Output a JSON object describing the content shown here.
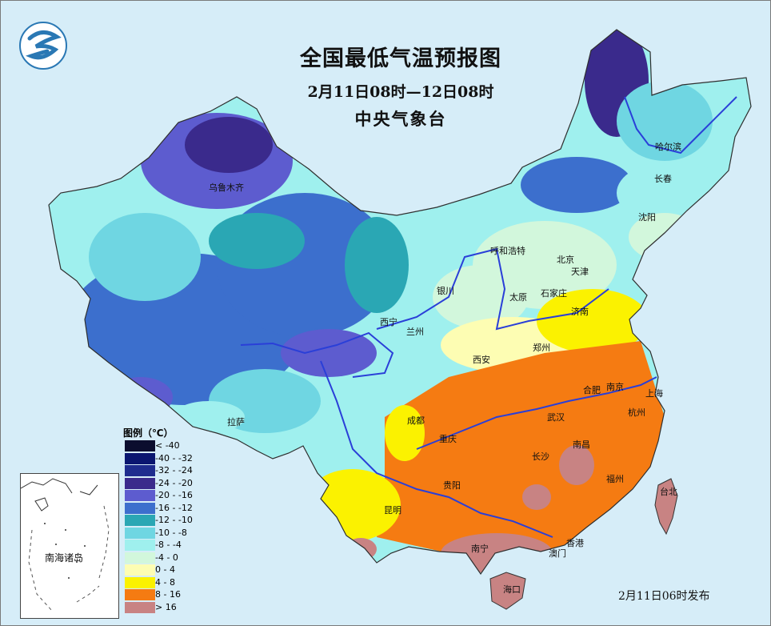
{
  "map": {
    "title": "全国最低气温预报图",
    "subtitle": "2月11日08时—12日08时",
    "agency": "中央气象台",
    "issued": "2月11日06时发布",
    "inset_label": "南海诸岛"
  },
  "legend": {
    "title": "图例（℃）",
    "items": [
      {
        "label": "< -40",
        "color": "#0b0d2e"
      },
      {
        "label": "-40 - -32",
        "color": "#0a1670"
      },
      {
        "label": "-32 - -24",
        "color": "#1e2c8e"
      },
      {
        "label": "-24 - -20",
        "color": "#3a2a8c"
      },
      {
        "label": "-20 - -16",
        "color": "#5d5ccf"
      },
      {
        "label": "-16 - -12",
        "color": "#3c6fcd"
      },
      {
        "label": "-12 - -10",
        "color": "#2aa7b4"
      },
      {
        "label": "-10 - -8",
        "color": "#6fd6e2"
      },
      {
        "label": "-8 - -4",
        "color": "#9ff0ee"
      },
      {
        "label": "-4 - 0",
        "color": "#d2f7dc"
      },
      {
        "label": "0 - 4",
        "color": "#fdfdb3"
      },
      {
        "label": "4 - 8",
        "color": "#fbf200"
      },
      {
        "label": "8 - 16",
        "color": "#f57b12"
      },
      {
        "label": "> 16",
        "color": "#c88383"
      }
    ]
  },
  "cities": [
    {
      "name": "乌鲁木齐"
    },
    {
      "name": "哈尔滨"
    },
    {
      "name": "长春"
    },
    {
      "name": "沈阳"
    },
    {
      "name": "呼和浩特"
    },
    {
      "name": "北京"
    },
    {
      "name": "天津"
    },
    {
      "name": "石家庄"
    },
    {
      "name": "太原"
    },
    {
      "name": "银川"
    },
    {
      "name": "西宁"
    },
    {
      "name": "兰州"
    },
    {
      "name": "济南"
    },
    {
      "name": "郑州"
    },
    {
      "name": "西安"
    },
    {
      "name": "合肥"
    },
    {
      "name": "南京"
    },
    {
      "name": "上海"
    },
    {
      "name": "杭州"
    },
    {
      "name": "成都"
    },
    {
      "name": "重庆"
    },
    {
      "name": "武汉"
    },
    {
      "name": "拉萨"
    },
    {
      "name": "长沙"
    },
    {
      "name": "南昌"
    },
    {
      "name": "贵阳"
    },
    {
      "name": "福州"
    },
    {
      "name": "台北"
    },
    {
      "name": "昆明"
    },
    {
      "name": "南宁"
    },
    {
      "name": "香港"
    },
    {
      "name": "澳门"
    },
    {
      "name": "海口"
    }
  ]
}
